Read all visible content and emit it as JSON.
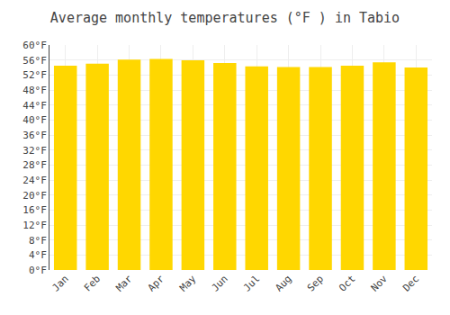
{
  "chart_data": {
    "type": "bar",
    "title": "Average monthly temperatures (°F ) in Tabio",
    "categories": [
      "Jan",
      "Feb",
      "Mar",
      "Apr",
      "May",
      "Jun",
      "Jul",
      "Aug",
      "Sep",
      "Oct",
      "Nov",
      "Dec"
    ],
    "values": [
      54.5,
      55.0,
      56.1,
      56.3,
      55.9,
      55.2,
      54.3,
      54.1,
      54.1,
      54.5,
      55.4,
      54.0
    ],
    "color": "#FFD700",
    "ylim": [
      0,
      60
    ],
    "yticks": [
      {
        "value": 0,
        "label": "0°F"
      },
      {
        "value": 4,
        "label": "4°F"
      },
      {
        "value": 8,
        "label": "8°F"
      },
      {
        "value": 12,
        "label": "12°F"
      },
      {
        "value": 16,
        "label": "16°F"
      },
      {
        "value": 20,
        "label": "20°F"
      },
      {
        "value": 24,
        "label": "24°F"
      },
      {
        "value": 28,
        "label": "28°F"
      },
      {
        "value": 32,
        "label": "32°F"
      },
      {
        "value": 36,
        "label": "36°F"
      },
      {
        "value": 40,
        "label": "40°F"
      },
      {
        "value": 44,
        "label": "44°F"
      },
      {
        "value": 48,
        "label": "48°F"
      },
      {
        "value": 52,
        "label": "52°F"
      },
      {
        "value": 56,
        "label": "56°F"
      },
      {
        "value": 60,
        "label": "60°F"
      }
    ],
    "grid": true
  }
}
